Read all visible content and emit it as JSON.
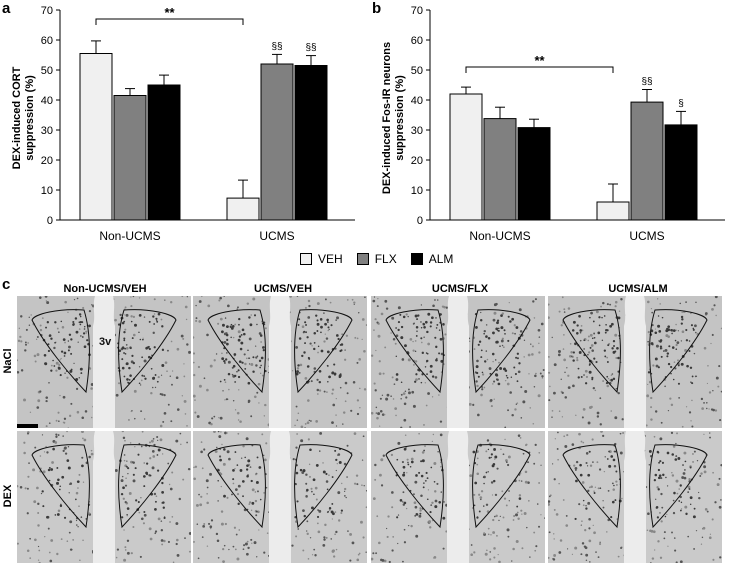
{
  "panel_labels": {
    "a": "a",
    "b": "b",
    "c": "c"
  },
  "chart_data": [
    {
      "type": "bar",
      "panel": "a",
      "ylabel": "DEX-induced CORT suppression (%)",
      "ylabel_lines": [
        "DEX-induced CORT",
        "suppression (%)"
      ],
      "ylim": [
        0,
        70
      ],
      "yticks": [
        0,
        10,
        20,
        30,
        40,
        50,
        60,
        70
      ],
      "categories": [
        "Non-UCMS",
        "UCMS"
      ],
      "series": [
        {
          "name": "VEH",
          "values": [
            55.5,
            7.3
          ],
          "errors": [
            4.2,
            6.0
          ],
          "color": "#f0f0f0"
        },
        {
          "name": "FLX",
          "values": [
            41.5,
            52.0
          ],
          "errors": [
            2.3,
            3.2
          ],
          "color": "#808080"
        },
        {
          "name": "ALM",
          "values": [
            45.0,
            51.5
          ],
          "errors": [
            3.3,
            3.3
          ],
          "color": "#000000"
        }
      ],
      "annotations": [
        {
          "text": "§§",
          "category": 1,
          "series": 1
        },
        {
          "text": "§§",
          "category": 1,
          "series": 2
        }
      ],
      "bracket": {
        "text": "**",
        "from": [
          0,
          0
        ],
        "to": [
          1,
          0
        ],
        "y": 67
      }
    },
    {
      "type": "bar",
      "panel": "b",
      "ylabel": "DEX-induced Fos-IR neurons suppression (%)",
      "ylabel_lines": [
        "DEX-induced Fos-IR neurons",
        "suppression (%)"
      ],
      "ylim": [
        0,
        70
      ],
      "yticks": [
        0,
        10,
        20,
        30,
        40,
        50,
        60,
        70
      ],
      "categories": [
        "Non-UCMS",
        "UCMS"
      ],
      "series": [
        {
          "name": "VEH",
          "values": [
            42.0,
            6.0
          ],
          "errors": [
            2.3,
            6.0
          ],
          "color": "#f0f0f0"
        },
        {
          "name": "FLX",
          "values": [
            33.8,
            39.3
          ],
          "errors": [
            3.8,
            4.2
          ],
          "color": "#808080"
        },
        {
          "name": "ALM",
          "values": [
            30.8,
            31.7
          ],
          "errors": [
            2.8,
            4.5
          ],
          "color": "#000000"
        }
      ],
      "annotations": [
        {
          "text": "§§",
          "category": 1,
          "series": 1
        },
        {
          "text": "§",
          "category": 1,
          "series": 2
        }
      ],
      "bracket": {
        "text": "**",
        "from": [
          0,
          0
        ],
        "to": [
          1,
          0
        ],
        "y": 51
      }
    }
  ],
  "legend": [
    {
      "label": "VEH",
      "color": "#f0f0f0"
    },
    {
      "label": "FLX",
      "color": "#808080"
    },
    {
      "label": "ALM",
      "color": "#000000"
    }
  ],
  "micrographs": {
    "columns": [
      "Non-UCMS/VEH",
      "UCMS/VEH",
      "UCMS/FLX",
      "UCMS/ALM"
    ],
    "rows": [
      "NaCl",
      "DEX"
    ],
    "ventricle_label": "3v"
  }
}
